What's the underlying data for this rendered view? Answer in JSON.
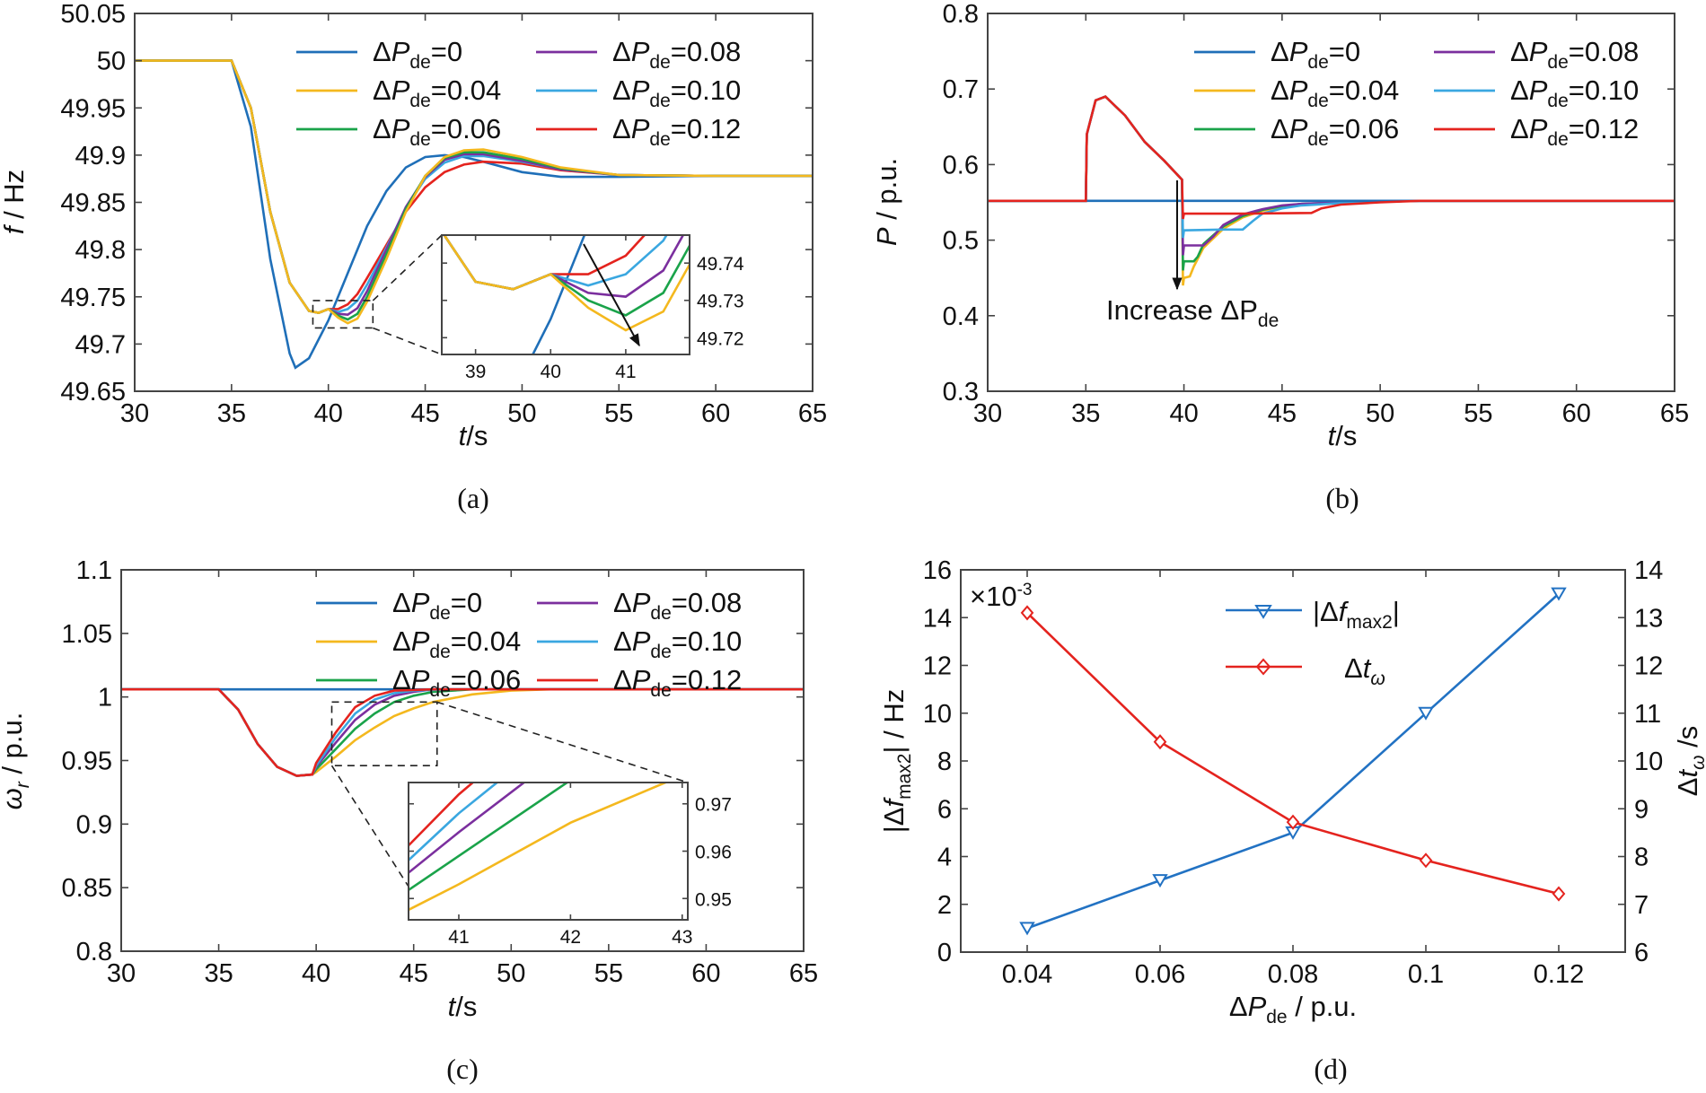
{
  "colors": {
    "blue": "#1f6fb8",
    "yellow": "#f4b81e",
    "green": "#1aa34a",
    "purple": "#7b2f9e",
    "cyan": "#3aa7e0",
    "red": "#e4231e",
    "d_blue": "#2272c3",
    "d_red": "#e4231e"
  },
  "legend": {
    "symbol": "ΔP",
    "subscript": "de",
    "entries": [
      "=0",
      "=0.04",
      "=0.06",
      "=0.08",
      "=0.10",
      "=0.12"
    ]
  },
  "captions": {
    "a": "(a)",
    "b": "(b)",
    "c": "(c)",
    "d": "(d)"
  },
  "chart_data": [
    {
      "id": "a",
      "type": "line",
      "title": "",
      "xlabel": "t/s",
      "ylabel": "f / Hz",
      "xlim": [
        30,
        65
      ],
      "ylim": [
        49.65,
        50.05
      ],
      "xticks": [
        "30",
        "35",
        "40",
        "45",
        "50",
        "55",
        "60",
        "65"
      ],
      "yticks": [
        "49.65",
        "49.7",
        "49.75",
        "49.8",
        "49.85",
        "49.9",
        "49.95",
        "50",
        "50.05"
      ],
      "series": [
        {
          "name": "ΔPde=0",
          "x": [
            30,
            35,
            36,
            37,
            38,
            38.3,
            39,
            40,
            41,
            42,
            43,
            44,
            45,
            46,
            47,
            48,
            50,
            52,
            55,
            60,
            65
          ],
          "y": [
            50,
            50,
            49.93,
            49.79,
            49.69,
            49.675,
            49.685,
            49.725,
            49.775,
            49.825,
            49.862,
            49.887,
            49.898,
            49.9,
            49.898,
            49.893,
            49.882,
            49.877,
            49.877,
            49.878,
            49.878
          ]
        },
        {
          "name": "ΔPde=0.04",
          "x": [
            30,
            35,
            36,
            37,
            38,
            39,
            39.5,
            40,
            40.5,
            41,
            41.5,
            42,
            43,
            44,
            45,
            46,
            47,
            48,
            50,
            52,
            55,
            60,
            65
          ],
          "y": [
            50,
            50,
            49.95,
            49.84,
            49.765,
            49.735,
            49.733,
            49.737,
            49.728,
            49.722,
            49.727,
            49.745,
            49.79,
            49.84,
            49.878,
            49.898,
            49.905,
            49.906,
            49.898,
            49.887,
            49.879,
            49.878,
            49.878
          ]
        },
        {
          "name": "ΔPde=0.06",
          "x": [
            30,
            35,
            36,
            37,
            38,
            39,
            39.5,
            40,
            40.5,
            41,
            41.5,
            42,
            43,
            44,
            45,
            46,
            47,
            48,
            50,
            52,
            55,
            60,
            65
          ],
          "y": [
            50,
            50,
            49.95,
            49.84,
            49.765,
            49.735,
            49.733,
            49.737,
            49.73,
            49.726,
            49.732,
            49.75,
            49.795,
            49.843,
            49.878,
            49.897,
            49.903,
            49.903,
            49.896,
            49.886,
            49.879,
            49.878,
            49.878
          ]
        },
        {
          "name": "ΔPde=0.08",
          "x": [
            30,
            35,
            36,
            37,
            38,
            39,
            39.5,
            40,
            40.5,
            41,
            41.5,
            42,
            43,
            44,
            45,
            46,
            47,
            48,
            50,
            52,
            55,
            60,
            65
          ],
          "y": [
            50,
            50,
            49.95,
            49.84,
            49.765,
            49.735,
            49.733,
            49.737,
            49.732,
            49.731,
            49.738,
            49.756,
            49.8,
            49.845,
            49.877,
            49.895,
            49.901,
            49.901,
            49.894,
            49.885,
            49.879,
            49.878,
            49.878
          ]
        },
        {
          "name": "ΔPde=0.10",
          "x": [
            30,
            35,
            36,
            37,
            38,
            39,
            39.5,
            40,
            40.5,
            41,
            41.5,
            42,
            43,
            44,
            45,
            46,
            47,
            48,
            50,
            52,
            55,
            60,
            65
          ],
          "y": [
            50,
            50,
            49.95,
            49.84,
            49.765,
            49.735,
            49.733,
            49.737,
            49.734,
            49.737,
            49.746,
            49.763,
            49.802,
            49.844,
            49.875,
            49.892,
            49.899,
            49.899,
            49.893,
            49.885,
            49.879,
            49.878,
            49.878
          ]
        },
        {
          "name": "ΔPde=0.12",
          "x": [
            30,
            35,
            36,
            37,
            38,
            39,
            39.5,
            40,
            40.5,
            41,
            41.5,
            42,
            43,
            44,
            45,
            46,
            47,
            48,
            50,
            52,
            55,
            60,
            65
          ],
          "y": [
            50,
            50,
            49.95,
            49.84,
            49.765,
            49.735,
            49.733,
            49.737,
            49.737,
            49.742,
            49.753,
            49.77,
            49.805,
            49.84,
            49.866,
            49.882,
            49.89,
            49.893,
            49.891,
            49.884,
            49.879,
            49.878,
            49.878
          ]
        }
      ],
      "inset": {
        "xlim": [
          38.55,
          41.85
        ],
        "ylim": [
          49.7155,
          49.7475
        ],
        "xticks": [
          "39",
          "40",
          "41"
        ],
        "yticks": [
          "49.72",
          "49.73",
          "49.74"
        ],
        "zoom_box_x": [
          39.2,
          42.3
        ],
        "zoom_box_y": [
          49.717,
          49.746
        ]
      }
    },
    {
      "id": "b",
      "type": "line",
      "title": "",
      "xlabel": "t/s",
      "ylabel": "P / p.u.",
      "xlim": [
        30,
        65
      ],
      "ylim": [
        0.3,
        0.8
      ],
      "xticks": [
        "30",
        "35",
        "40",
        "45",
        "50",
        "55",
        "60",
        "65"
      ],
      "yticks": [
        "0.3",
        "0.4",
        "0.5",
        "0.6",
        "0.7",
        "0.8"
      ],
      "annotation": {
        "text": "Increase ΔP",
        "subscript": "de"
      },
      "series": [
        {
          "name": "ΔPde=0",
          "x": [
            30,
            65
          ],
          "y": [
            0.552,
            0.552
          ]
        },
        {
          "name": "ΔPde=0.04",
          "x": [
            30,
            35,
            35.05,
            35.5,
            36,
            37,
            38,
            39,
            39.9,
            39.95,
            40,
            40.3,
            40.5,
            41,
            42,
            43,
            44,
            45,
            46,
            48,
            50,
            52,
            65
          ],
          "y": [
            0.552,
            0.552,
            0.64,
            0.685,
            0.69,
            0.665,
            0.63,
            0.605,
            0.58,
            0.44,
            0.45,
            0.452,
            0.465,
            0.49,
            0.515,
            0.53,
            0.539,
            0.544,
            0.547,
            0.55,
            0.551,
            0.552,
            0.552
          ]
        },
        {
          "name": "ΔPde=0.06",
          "x": [
            30,
            35,
            35.05,
            35.5,
            36,
            37,
            38,
            39,
            39.9,
            39.95,
            40,
            40.5,
            40.7,
            41,
            42,
            43,
            44,
            45,
            46,
            48,
            50,
            52,
            65
          ],
          "y": [
            0.552,
            0.552,
            0.64,
            0.685,
            0.69,
            0.665,
            0.63,
            0.605,
            0.58,
            0.46,
            0.472,
            0.472,
            0.478,
            0.495,
            0.518,
            0.532,
            0.54,
            0.545,
            0.548,
            0.55,
            0.551,
            0.552,
            0.552
          ]
        },
        {
          "name": "ΔPde=0.08",
          "x": [
            30,
            35,
            35.05,
            35.5,
            36,
            37,
            38,
            39,
            39.9,
            39.95,
            40,
            41,
            41.5,
            42,
            43,
            44,
            45,
            46,
            48,
            50,
            52,
            65
          ],
          "y": [
            0.552,
            0.552,
            0.64,
            0.685,
            0.69,
            0.665,
            0.63,
            0.605,
            0.58,
            0.48,
            0.493,
            0.493,
            0.505,
            0.52,
            0.534,
            0.541,
            0.546,
            0.548,
            0.55,
            0.551,
            0.552,
            0.552
          ]
        },
        {
          "name": "ΔPde=0.10",
          "x": [
            30,
            35,
            35.05,
            35.5,
            36,
            37,
            38,
            39,
            39.9,
            39.95,
            40,
            42,
            43,
            43.5,
            44,
            45,
            46,
            48,
            50,
            52,
            65
          ],
          "y": [
            0.552,
            0.552,
            0.64,
            0.685,
            0.69,
            0.665,
            0.63,
            0.605,
            0.58,
            0.503,
            0.513,
            0.514,
            0.514,
            0.525,
            0.535,
            0.542,
            0.546,
            0.549,
            0.551,
            0.552,
            0.552
          ]
        },
        {
          "name": "ΔPde=0.12",
          "x": [
            30,
            35,
            35.05,
            35.5,
            36,
            37,
            38,
            39,
            39.9,
            39.95,
            40,
            43,
            46.5,
            47,
            48,
            50,
            52,
            65
          ],
          "y": [
            0.552,
            0.552,
            0.64,
            0.685,
            0.69,
            0.665,
            0.63,
            0.605,
            0.58,
            0.528,
            0.535,
            0.535,
            0.536,
            0.542,
            0.547,
            0.55,
            0.552,
            0.552
          ]
        }
      ]
    },
    {
      "id": "c",
      "type": "line",
      "title": "",
      "xlabel": "t/s",
      "ylabel": "ωr / p.u.",
      "xlim": [
        30,
        65
      ],
      "ylim": [
        0.8,
        1.1
      ],
      "xticks": [
        "30",
        "35",
        "40",
        "45",
        "50",
        "55",
        "60",
        "65"
      ],
      "yticks": [
        "0.8",
        "0.85",
        "0.9",
        "0.95",
        "1",
        "1.05",
        "1.1"
      ],
      "series": [
        {
          "name": "ΔPde=0",
          "x": [
            30,
            65
          ],
          "y": [
            1.006,
            1.006
          ]
        },
        {
          "name": "ΔPde=0.04",
          "x": [
            30,
            35,
            36,
            37,
            38,
            39,
            39.8,
            40,
            41,
            42,
            43,
            44,
            45,
            46,
            48,
            50,
            52,
            65
          ],
          "y": [
            1.006,
            1.006,
            0.99,
            0.963,
            0.945,
            0.938,
            0.939,
            0.941,
            0.953,
            0.966,
            0.976,
            0.985,
            0.991,
            0.996,
            1.002,
            1.005,
            1.006,
            1.006
          ]
        },
        {
          "name": "ΔPde=0.06",
          "x": [
            30,
            35,
            36,
            37,
            38,
            39,
            39.8,
            40,
            41,
            42,
            43,
            44,
            45,
            46,
            48,
            50,
            65
          ],
          "y": [
            1.006,
            1.006,
            0.99,
            0.963,
            0.945,
            0.938,
            0.939,
            0.943,
            0.959,
            0.975,
            0.987,
            0.996,
            1.001,
            1.004,
            1.006,
            1.006,
            1.006
          ]
        },
        {
          "name": "ΔPde=0.08",
          "x": [
            30,
            35,
            36,
            37,
            38,
            39,
            39.8,
            40,
            41,
            42,
            43,
            44,
            45,
            46,
            48,
            65
          ],
          "y": [
            1.006,
            1.006,
            0.99,
            0.963,
            0.945,
            0.938,
            0.939,
            0.945,
            0.964,
            0.982,
            0.994,
            1.001,
            1.004,
            1.006,
            1.006,
            1.006
          ]
        },
        {
          "name": "ΔPde=0.10",
          "x": [
            30,
            35,
            36,
            37,
            38,
            39,
            39.8,
            40,
            41,
            42,
            43,
            44,
            45,
            47,
            65
          ],
          "y": [
            1.006,
            1.006,
            0.99,
            0.963,
            0.945,
            0.938,
            0.939,
            0.946,
            0.968,
            0.987,
            0.998,
            1.003,
            1.005,
            1.006,
            1.006
          ]
        },
        {
          "name": "ΔPde=0.12",
          "x": [
            30,
            35,
            36,
            37,
            38,
            39,
            39.8,
            40,
            41,
            42,
            43,
            44,
            46,
            65
          ],
          "y": [
            1.006,
            1.006,
            0.99,
            0.963,
            0.945,
            0.938,
            0.939,
            0.948,
            0.972,
            0.992,
            1.001,
            1.005,
            1.006,
            1.006
          ]
        }
      ],
      "inset": {
        "xlim": [
          40.55,
          43.05
        ],
        "ylim": [
          0.9455,
          0.9745
        ],
        "xticks": [
          "41",
          "42",
          "43"
        ],
        "yticks": [
          "0.95",
          "0.96",
          "0.97"
        ],
        "zoom_box_x": [
          40.8,
          46.2
        ],
        "zoom_box_y": [
          0.946,
          0.996
        ]
      }
    },
    {
      "id": "d",
      "type": "line",
      "title": "",
      "xlabel": "ΔPde / p.u.",
      "ylabel": "|Δfmax2| / Hz",
      "ylabel_right": "Δtω /s",
      "multiplier": "×10-3",
      "xlim": [
        0.03,
        0.13
      ],
      "ylim": [
        0,
        16
      ],
      "ylim_right": [
        6,
        14
      ],
      "xticks": [
        "0.04",
        "0.06",
        "0.08",
        "0.1",
        "0.12"
      ],
      "yticks": [
        "0",
        "2",
        "4",
        "6",
        "8",
        "10",
        "12",
        "14",
        "16"
      ],
      "yticks_right": [
        "6",
        "7",
        "8",
        "9",
        "10",
        "11",
        "12",
        "13",
        "14"
      ],
      "series": [
        {
          "name": "|Δfmax2|",
          "axis": "left",
          "marker": "triangle-down",
          "x": [
            0.04,
            0.06,
            0.08,
            0.1,
            0.12
          ],
          "y": [
            1,
            3,
            5,
            10,
            15
          ]
        },
        {
          "name": "Δtω",
          "axis": "right",
          "marker": "diamond",
          "x": [
            0.04,
            0.06,
            0.08,
            0.1,
            0.12
          ],
          "y": [
            13.1,
            10.4,
            8.72,
            7.92,
            7.22
          ]
        }
      ]
    }
  ]
}
